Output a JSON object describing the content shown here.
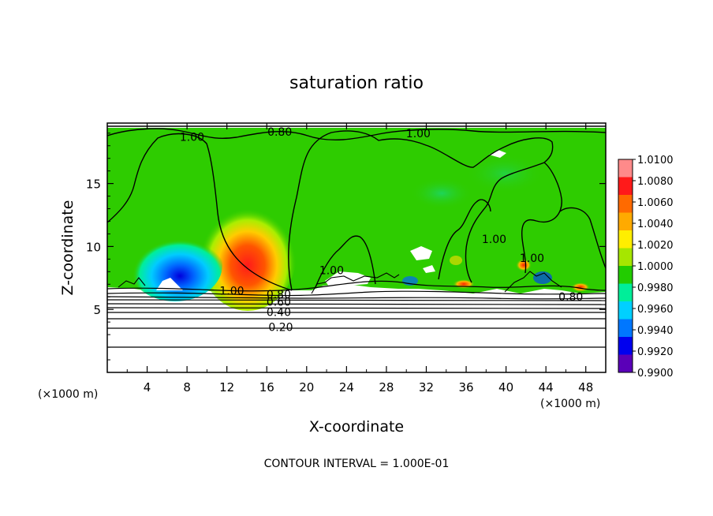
{
  "chart_data": {
    "type": "heatmap",
    "title": "saturation ratio",
    "xlabel": "X-coordinate",
    "ylabel": "Z-coordinate",
    "x_unit_label": "(×1000 m)",
    "z_unit_label": "(×1000 m)",
    "xlim": [
      0,
      50
    ],
    "ylim": [
      0,
      19.8
    ],
    "x_ticks": [
      4,
      8,
      12,
      16,
      20,
      24,
      28,
      32,
      36,
      40,
      44,
      48
    ],
    "y_ticks": [
      5,
      10,
      15
    ],
    "footer": "CONTOUR INTERVAL = 1.000E-01",
    "colorbar": {
      "min": 0.99,
      "max": 1.01,
      "labels": [
        "1.0100",
        "1.0080",
        "1.0060",
        "1.0040",
        "1.0020",
        "1.0000",
        "0.9980",
        "0.9960",
        "0.9940",
        "0.9920",
        "0.9900"
      ],
      "colors": [
        "#ff8a8a",
        "#ff1a1a",
        "#ff6a00",
        "#ffaa00",
        "#ffee00",
        "#a6e600",
        "#22cc00",
        "#00ee99",
        "#00d0ff",
        "#0077ff",
        "#0000ee",
        "#5a00b8"
      ]
    },
    "contour_labels": [
      {
        "text": "1.00",
        "x": 8.5,
        "z": 18.7
      },
      {
        "text": "0.80",
        "x": 17.3,
        "z": 19.1
      },
      {
        "text": "1.00",
        "x": 31.2,
        "z": 19.0
      },
      {
        "text": "1.00",
        "x": 12.5,
        "z": 6.5
      },
      {
        "text": "0.80",
        "x": 17.2,
        "z": 6.2
      },
      {
        "text": "0.60",
        "x": 17.2,
        "z": 5.6
      },
      {
        "text": "0.40",
        "x": 17.2,
        "z": 4.8
      },
      {
        "text": "0.20",
        "x": 17.4,
        "z": 3.6
      },
      {
        "text": "1.00",
        "x": 22.5,
        "z": 8.1
      },
      {
        "text": "1.00",
        "x": 38.8,
        "z": 10.6
      },
      {
        "text": "1.00",
        "x": 42.6,
        "z": 9.1
      },
      {
        "text": "0.80",
        "x": 46.5,
        "z": 6.0
      }
    ]
  }
}
